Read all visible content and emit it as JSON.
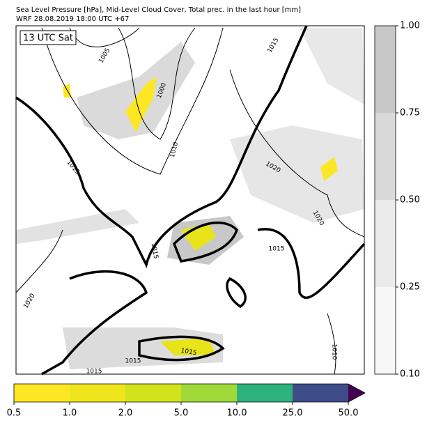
{
  "header": {
    "title": "Sea Level Pressure [hPa], Mid-Level Cloud Cover, Total prec. in the last hour [mm]",
    "subtitle": "WRF 28.08.2019 18:00 UTC +67"
  },
  "map": {
    "time_label": "13 UTC Sat",
    "contour_labels": [
      "1005",
      "1000",
      "1015",
      "1010",
      "1015",
      "1020",
      "1020",
      "1015",
      "1015",
      "1020",
      "1015",
      "1015",
      "1010",
      "1015"
    ]
  },
  "cloud_colorbar": {
    "ticks": [
      "0.10",
      "0.25",
      "0.50",
      "0.75",
      "1.00"
    ]
  },
  "precip_colorbar": {
    "ticks": [
      "0.5",
      "1.0",
      "2.0",
      "5.0",
      "10.0",
      "25.0",
      "50.0"
    ]
  }
}
